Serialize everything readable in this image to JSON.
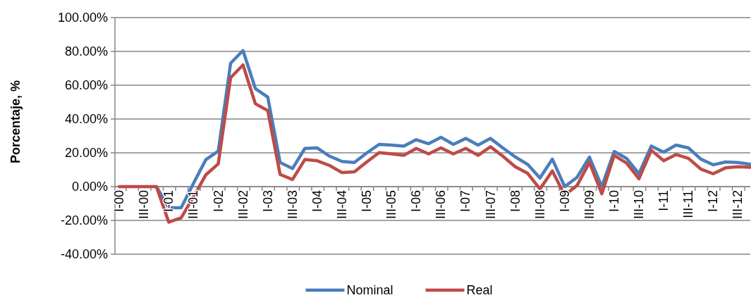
{
  "chart_data": {
    "type": "line",
    "ylabel": "Porcentaje, %",
    "categories": [
      "I-00",
      null,
      "III-00",
      null,
      "I-01",
      null,
      "III-01",
      null,
      "I-02",
      null,
      "III-02",
      null,
      "I-03",
      null,
      "III-03",
      null,
      "I-04",
      null,
      "III-04",
      null,
      "I-05",
      null,
      "III-05",
      null,
      "I-06",
      null,
      "III-06",
      null,
      "I-07",
      null,
      "III-07",
      null,
      "I-08",
      null,
      "III-08",
      null,
      "I-09",
      null,
      "III-09",
      null,
      "I-10",
      null,
      "III-10",
      null,
      "I-11",
      null,
      "III-11",
      null,
      "I-12",
      null,
      "III-12",
      null
    ],
    "series": [
      {
        "name": "Nominal",
        "color": "#4a7ebb",
        "values": [
          null,
          null,
          null,
          0,
          -12.5,
          -12.5,
          2,
          16,
          21,
          73,
          80.5,
          58,
          53,
          14.3,
          10.7,
          22.6,
          22.9,
          18,
          14.9,
          14.3,
          19.9,
          25,
          24.6,
          24,
          27.8,
          25.4,
          29.2,
          25,
          28.5,
          24.6,
          28.5,
          22.9,
          17.6,
          13.2,
          5.1,
          16.3,
          0,
          5.5,
          17.4,
          0,
          20.8,
          16.7,
          7.6,
          24,
          20.4,
          24.6,
          22.9,
          16.3,
          12.9,
          14.6,
          14.3,
          13.2
        ]
      },
      {
        "name": "Real",
        "color": "#be4b48",
        "values": [
          0,
          0,
          0,
          0,
          -21,
          -18.5,
          -6,
          7,
          13.5,
          64.5,
          72,
          49,
          45,
          7.2,
          4.2,
          16,
          15.3,
          12.5,
          8.3,
          8.7,
          14.6,
          20.1,
          19.4,
          18.5,
          22.6,
          19.4,
          22.9,
          19.4,
          22.6,
          18.5,
          23.6,
          18,
          11.8,
          7.9,
          -1.4,
          9.3,
          -5.1,
          0.7,
          14.3,
          -4.2,
          18.5,
          13.9,
          4.6,
          21.5,
          15.3,
          19,
          16.7,
          10.4,
          7.6,
          11.1,
          11.8,
          11.5
        ]
      }
    ],
    "ylim": [
      -40,
      100
    ],
    "yticks": [
      {
        "value": -40,
        "label": "-40.00%"
      },
      {
        "value": -20,
        "label": "-20.00%"
      },
      {
        "value": 0,
        "label": "0.00%"
      },
      {
        "value": 20,
        "label": "20.00%"
      },
      {
        "value": 40,
        "label": "40.00%"
      },
      {
        "value": 60,
        "label": "60.00%"
      },
      {
        "value": 80,
        "label": "80.00%"
      },
      {
        "value": 100,
        "label": "100.00%"
      }
    ],
    "grid": "y",
    "legend": "bottom",
    "marker": "none",
    "line_style": "solid"
  }
}
